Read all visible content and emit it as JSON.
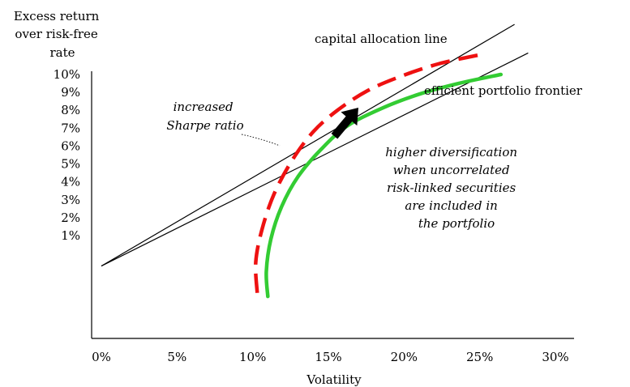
{
  "chart_data": {
    "type": "line",
    "ylabel": [
      "Excess return",
      "over risk-free",
      "rate"
    ],
    "xlabel": "Volatility",
    "x_ticks": [
      "0%",
      "5%",
      "10%",
      "15%",
      "20%",
      "25%",
      "30%"
    ],
    "y_ticks": [
      "1%",
      "2%",
      "3%",
      "4%",
      "5%",
      "6%",
      "7%",
      "8%",
      "9%",
      "10%"
    ],
    "xlim": [
      -0.5,
      30.5
    ],
    "ylim": [
      -5.5,
      11
    ],
    "grid": false,
    "series": [
      {
        "name": "capital allocation line",
        "style": "solid-thin",
        "color": "#000000",
        "x": [
          0,
          27.3
        ],
        "y": [
          -0.7,
          12.8
        ]
      },
      {
        "name": "",
        "style": "solid-thin",
        "color": "#000000",
        "x": [
          0,
          28.2
        ],
        "y": [
          -0.7,
          11.2
        ]
      },
      {
        "name": "efficient portfolio frontier",
        "style": "solid-thick",
        "color": "#33cc33",
        "x": [
          11.0,
          10.9,
          11.2,
          11.9,
          13.0,
          14.5,
          16.2,
          18.5,
          21.0,
          23.6,
          26.4
        ],
        "y": [
          -2.4,
          -1.0,
          0.8,
          2.6,
          4.3,
          5.8,
          7.1,
          8.1,
          8.9,
          9.5,
          10.0
        ]
      },
      {
        "name": "",
        "style": "dashed-thick",
        "color": "#ee1111",
        "x": [
          10.3,
          10.2,
          10.6,
          11.4,
          12.6,
          14.0,
          15.6,
          17.6,
          19.8,
          22.3,
          25.0
        ],
        "y": [
          -2.2,
          -0.5,
          1.3,
          3.3,
          5.2,
          6.8,
          8.0,
          9.1,
          9.9,
          10.6,
          11.1
        ]
      }
    ],
    "annotations": {
      "cal_label": "capital allocation line",
      "frontier_label": "efficient portfolio frontier",
      "sharpe": [
        "increased",
        "Sharpe ratio"
      ],
      "diversification": [
        "higher diversification",
        "when uncorrelated",
        "risk-linked securities",
        "are included in",
        "the portfolio"
      ]
    }
  }
}
